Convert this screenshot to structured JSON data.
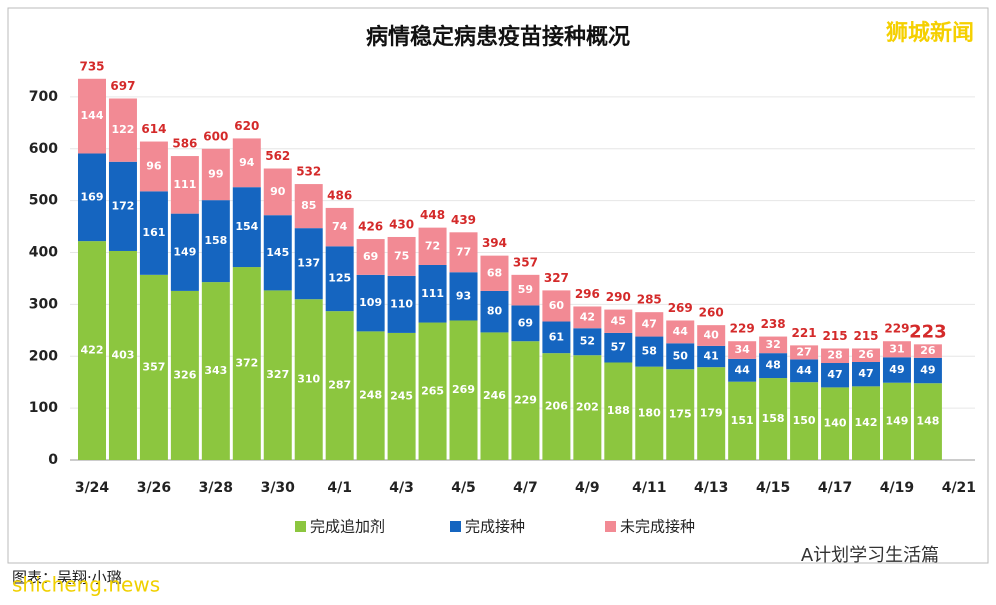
{
  "chart_data": {
    "type": "stacked-bar",
    "title": "病情稳定病患疫苗接种概况",
    "categories": [
      "3/24",
      null,
      "3/26",
      null,
      "3/28",
      null,
      "3/30",
      null,
      "4/1",
      null,
      "4/3",
      null,
      "4/5",
      null,
      "4/7",
      null,
      "4/9",
      null,
      "4/11",
      null,
      "4/13",
      null,
      "4/15",
      null,
      "4/17",
      null,
      "4/19",
      null,
      "4/21"
    ],
    "series": [
      {
        "name": "完成追加剂",
        "color": "#8cc63f",
        "values": [
          422,
          403,
          357,
          326,
          343,
          372,
          327,
          310,
          287,
          248,
          245,
          265,
          269,
          246,
          229,
          206,
          202,
          188,
          180,
          175,
          179,
          151,
          158,
          150,
          140,
          142,
          149,
          148,
          null
        ]
      },
      {
        "name": "完成接种",
        "color": "#1565c0",
        "values": [
          169,
          172,
          161,
          149,
          158,
          154,
          145,
          137,
          125,
          109,
          110,
          111,
          93,
          80,
          69,
          61,
          52,
          57,
          58,
          50,
          41,
          44,
          48,
          44,
          47,
          47,
          49,
          49,
          null
        ]
      },
      {
        "name": "未完成接种",
        "color": "#f28a94",
        "values": [
          144,
          122,
          96,
          111,
          99,
          94,
          90,
          85,
          74,
          69,
          75,
          72,
          77,
          68,
          59,
          60,
          42,
          45,
          47,
          44,
          40,
          34,
          32,
          27,
          28,
          26,
          31,
          26,
          null
        ]
      }
    ],
    "totals": [
      735,
      697,
      614,
      586,
      600,
      620,
      562,
      532,
      486,
      426,
      430,
      448,
      439,
      394,
      357,
      327,
      296,
      290,
      285,
      269,
      260,
      229,
      238,
      221,
      215,
      215,
      229,
      223,
      null
    ],
    "ylim": [
      0,
      750
    ],
    "yticks": [
      0,
      100,
      200,
      300,
      400,
      500,
      600,
      700
    ],
    "grid": true,
    "legend": "bottom",
    "source": "图表：吴翔·小璐",
    "watermark": "狮城新闻",
    "site": "shicheng.news",
    "account": "A计划学习生活篇"
  }
}
